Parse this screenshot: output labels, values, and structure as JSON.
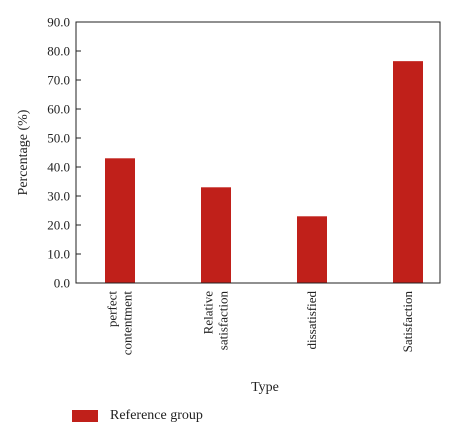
{
  "chart_data": {
    "type": "bar",
    "categories": [
      [
        "perfect",
        "contentment"
      ],
      [
        "Relative",
        "satisfaction"
      ],
      [
        "dissatisfied"
      ],
      [
        "Satisfaction"
      ]
    ],
    "series": [
      {
        "name": "Reference group",
        "values": [
          43.0,
          33.0,
          23.0,
          76.5
        ]
      }
    ],
    "ylabel": "Percentage (%)",
    "xlabel": "Type",
    "ylim": [
      0,
      90
    ],
    "yticks": [
      "0.0",
      "10.0",
      "20.0",
      "30.0",
      "40.0",
      "50.0",
      "60.0",
      "70.0",
      "80.0",
      "90.0"
    ],
    "legend_position": "bottom-left",
    "grid": false,
    "bar_color": "#c0201a"
  }
}
